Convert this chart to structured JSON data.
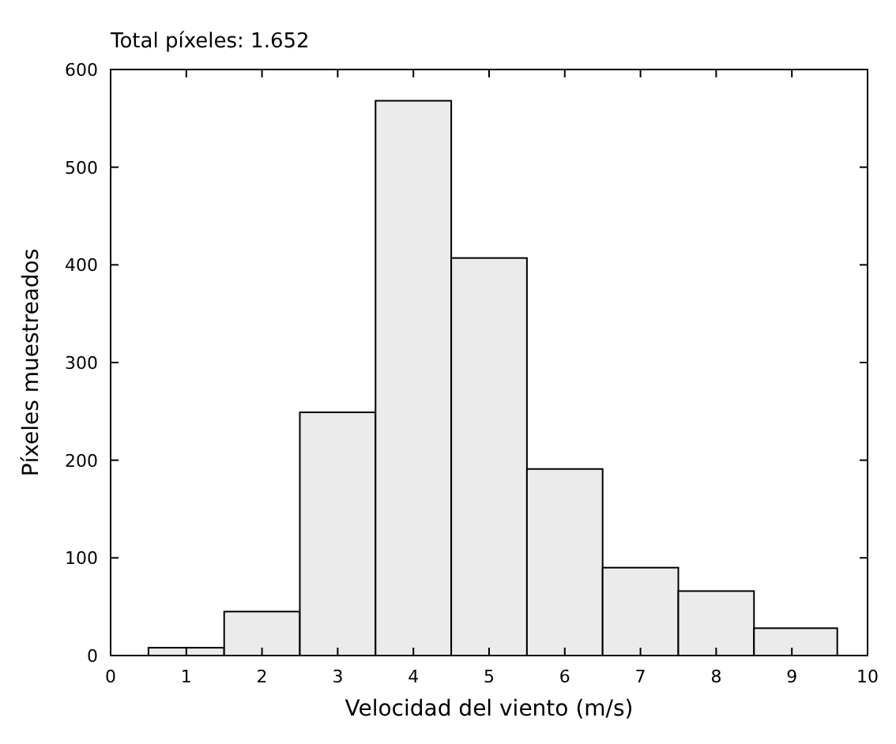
{
  "chart_data": {
    "type": "histogram",
    "title": "Total píxeles: 1.652",
    "xlabel": "Velocidad del viento (m/s)",
    "ylabel": "Píxeles muestreados",
    "bins": [
      0.5,
      1.5,
      2.5,
      3.5,
      4.5,
      5.5,
      6.5,
      7.5,
      8.5,
      9.6
    ],
    "values": [
      8,
      45,
      249,
      568,
      407,
      191,
      90,
      66,
      28
    ],
    "color": "#ebebeb",
    "xlim": [
      0,
      10
    ],
    "xticks": [
      0,
      1,
      2,
      3,
      4,
      5,
      6,
      7,
      8,
      9,
      10
    ],
    "ylim": [
      0,
      600
    ],
    "yticks": [
      0,
      100,
      200,
      300,
      400,
      500,
      600
    ],
    "grid": false
  }
}
